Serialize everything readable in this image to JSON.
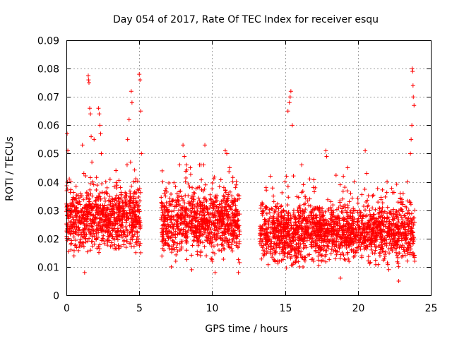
{
  "chart_data": {
    "type": "scatter",
    "title": "Day 054 of 2017, Rate Of TEC Index for receiver esqu",
    "xlabel": "GPS time / hours",
    "ylabel": "ROTI / TECUs",
    "xlim": [
      0,
      25
    ],
    "ylim": [
      0,
      0.09
    ],
    "x_ticks": [
      0,
      5,
      10,
      15,
      20,
      25
    ],
    "y_ticks": [
      0,
      0.01,
      0.02,
      0.03,
      0.04,
      0.05,
      0.06,
      0.07,
      0.08,
      0.09
    ],
    "x_tick_labels": [
      "0",
      "5",
      "10",
      "15",
      "20",
      "25"
    ],
    "y_tick_labels": [
      "0",
      "0.01",
      "0.02",
      "0.03",
      "0.04",
      "0.05",
      "0.06",
      "0.07",
      "0.08",
      "0.09"
    ],
    "grid": true,
    "marker": "+",
    "color": "#ff0000",
    "series": [
      {
        "name": "ROTI",
        "segments": [
          {
            "x_range": [
              0.0,
              5.1
            ],
            "typical_range": [
              0.012,
              0.035
            ]
          },
          {
            "x_range": [
              6.5,
              11.9
            ],
            "typical_range": [
              0.01,
              0.035
            ]
          },
          {
            "x_range": [
              13.2,
              23.9
            ],
            "typical_range": [
              0.008,
              0.03
            ]
          }
        ],
        "points": [
          [
            0.05,
            0.057
          ],
          [
            0.1,
            0.051
          ],
          [
            0.2,
            0.041
          ],
          [
            0.15,
            0.022
          ],
          [
            0.3,
            0.018
          ],
          [
            0.5,
            0.025
          ],
          [
            0.7,
            0.03
          ],
          [
            0.9,
            0.033
          ],
          [
            1.1,
            0.053
          ],
          [
            1.2,
            0.043
          ],
          [
            1.25,
            0.008
          ],
          [
            1.4,
            0.036
          ],
          [
            1.5,
            0.0775
          ],
          [
            1.52,
            0.076
          ],
          [
            1.55,
            0.075
          ],
          [
            1.6,
            0.066
          ],
          [
            1.65,
            0.064
          ],
          [
            1.7,
            0.056
          ],
          [
            1.75,
            0.047
          ],
          [
            1.8,
            0.04
          ],
          [
            1.9,
            0.055
          ],
          [
            2.0,
            0.032
          ],
          [
            2.2,
            0.066
          ],
          [
            2.25,
            0.064
          ],
          [
            2.3,
            0.06
          ],
          [
            2.35,
            0.057
          ],
          [
            2.4,
            0.05
          ],
          [
            2.5,
            0.03
          ],
          [
            2.7,
            0.04
          ],
          [
            3.0,
            0.025
          ],
          [
            3.2,
            0.02
          ],
          [
            3.4,
            0.044
          ],
          [
            3.6,
            0.034
          ],
          [
            3.8,
            0.028
          ],
          [
            4.0,
            0.022
          ],
          [
            4.2,
            0.055
          ],
          [
            4.3,
            0.062
          ],
          [
            4.4,
            0.047
          ],
          [
            4.45,
            0.072
          ],
          [
            4.5,
            0.068
          ],
          [
            4.6,
            0.04
          ],
          [
            4.7,
            0.025
          ],
          [
            4.9,
            0.03
          ],
          [
            5.0,
            0.078
          ],
          [
            5.05,
            0.076
          ],
          [
            5.1,
            0.065
          ],
          [
            5.15,
            0.05
          ],
          [
            5.0,
            0.027
          ],
          [
            5.1,
            0.015
          ],
          [
            6.6,
            0.04
          ],
          [
            6.8,
            0.035
          ],
          [
            7.0,
            0.02
          ],
          [
            7.2,
            0.01
          ],
          [
            7.5,
            0.012
          ],
          [
            7.7,
            0.03
          ],
          [
            8.0,
            0.053
          ],
          [
            8.1,
            0.049
          ],
          [
            8.3,
            0.025
          ],
          [
            8.5,
            0.045
          ],
          [
            8.6,
            0.009
          ],
          [
            8.8,
            0.036
          ],
          [
            9.0,
            0.02
          ],
          [
            9.2,
            0.014
          ],
          [
            9.4,
            0.028
          ],
          [
            9.5,
            0.053
          ],
          [
            9.8,
            0.022
          ],
          [
            10.0,
            0.012
          ],
          [
            10.2,
            0.008
          ],
          [
            10.4,
            0.03
          ],
          [
            10.6,
            0.02
          ],
          [
            10.8,
            0.038
          ],
          [
            10.9,
            0.051
          ],
          [
            11.0,
            0.05
          ],
          [
            11.2,
            0.045
          ],
          [
            11.4,
            0.04
          ],
          [
            11.6,
            0.03
          ],
          [
            11.8,
            0.008
          ],
          [
            13.3,
            0.02
          ],
          [
            13.5,
            0.03
          ],
          [
            13.7,
            0.038
          ],
          [
            14.0,
            0.042
          ],
          [
            14.2,
            0.035
          ],
          [
            14.4,
            0.018
          ],
          [
            14.6,
            0.012
          ],
          [
            15.0,
            0.04
          ],
          [
            15.1,
            0.042
          ],
          [
            15.2,
            0.065
          ],
          [
            15.3,
            0.068
          ],
          [
            15.35,
            0.07
          ],
          [
            15.4,
            0.072
          ],
          [
            15.5,
            0.06
          ],
          [
            15.6,
            0.03
          ],
          [
            15.8,
            0.018
          ],
          [
            16.0,
            0.01
          ],
          [
            16.5,
            0.022
          ],
          [
            17.0,
            0.03
          ],
          [
            17.5,
            0.012
          ],
          [
            17.8,
            0.051
          ],
          [
            17.85,
            0.049
          ],
          [
            18.0,
            0.03
          ],
          [
            18.5,
            0.025
          ],
          [
            18.8,
            0.006
          ],
          [
            19.0,
            0.042
          ],
          [
            19.3,
            0.045
          ],
          [
            19.5,
            0.036
          ],
          [
            19.8,
            0.03
          ],
          [
            20.2,
            0.02
          ],
          [
            20.5,
            0.051
          ],
          [
            20.6,
            0.043
          ],
          [
            21.0,
            0.035
          ],
          [
            21.5,
            0.015
          ],
          [
            22.0,
            0.04
          ],
          [
            22.3,
            0.025
          ],
          [
            22.8,
            0.005
          ],
          [
            23.1,
            0.02
          ],
          [
            23.4,
            0.04
          ],
          [
            23.6,
            0.05
          ],
          [
            23.65,
            0.055
          ],
          [
            23.7,
            0.06
          ],
          [
            23.72,
            0.08
          ],
          [
            23.75,
            0.079
          ],
          [
            23.78,
            0.074
          ],
          [
            23.8,
            0.07
          ],
          [
            23.85,
            0.067
          ],
          [
            23.9,
            0.03
          ]
        ]
      }
    ]
  }
}
